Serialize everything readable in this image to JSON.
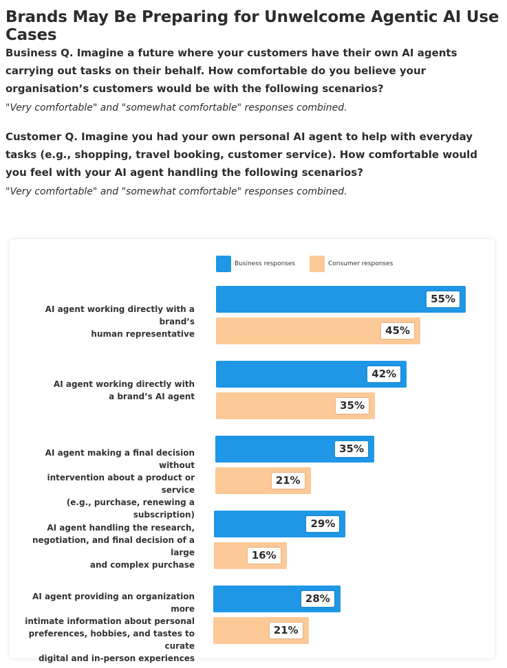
{
  "page": {
    "title": "Brands May Be Preparing for Unwelcome Agentic AI Use Cases",
    "business_question": "Business Q. Imagine a future where your customers have their own AI agents carrying out tasks on their behalf. How comfortable do you believe your organisation’s customers would be with the following scenarios?",
    "business_note": "\"Very comfortable\" and \"somewhat comfortable\" responses combined.",
    "customer_question": "Customer Q. Imagine you had your own personal AI agent to help with everyday tasks (e.g., shopping, travel booking, customer service). How comfortable would you feel with your AI agent handling the following scenarios?",
    "customer_note": "\"Very comfortable\" and \"somewhat comfortable\" responses combined."
  },
  "colors": {
    "business": "#1f96e6",
    "consumer": "#fdc997"
  },
  "chart_data": {
    "type": "bar",
    "orientation": "horizontal",
    "legend_position": "top",
    "grid": false,
    "xlim": [
      0,
      60
    ],
    "categories": [
      "AI agent working directly with a brand’s\nhuman representative",
      "AI agent working directly with\na brand’s AI agent",
      "AI agent making a final decision without\nintervention about a product or service\n(e.g., purchase, renewing a subscription)",
      "AI agent handling the research,\nnegotiation, and final decision of a large\nand complex purchase",
      "AI agent providing an organization more\nintimate information about personal\npreferences, hobbies, and tastes to curate\ndigital and in-person experiences"
    ],
    "series": [
      {
        "name": "Business responses",
        "values": [
          55,
          42,
          35,
          29,
          28
        ],
        "labels": [
          "55%",
          "42%",
          "35%",
          "29%",
          "28%"
        ]
      },
      {
        "name": "Consumer responses",
        "values": [
          45,
          35,
          21,
          16,
          21
        ],
        "labels": [
          "45%",
          "35%",
          "21%",
          "16%",
          "21%"
        ]
      }
    ]
  }
}
